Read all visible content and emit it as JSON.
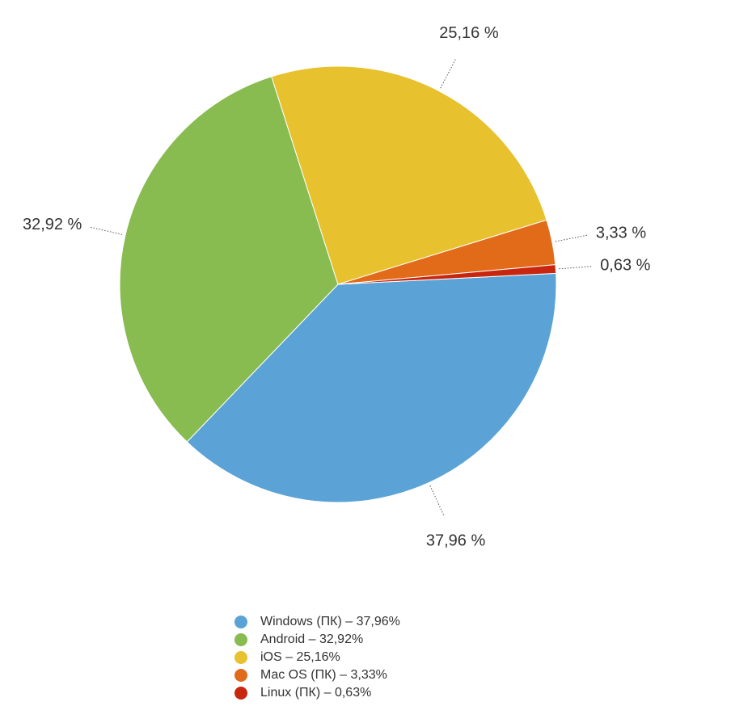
{
  "chart_data": {
    "type": "pie",
    "categories": [
      "Windows (ПК) – 37,96%",
      "Android  – 32,92%",
      "iOS – 25,16%",
      "Mac OS (ПК) – 3,33%",
      "Linux (ПК) – 0,63%"
    ],
    "values": [
      37.96,
      32.92,
      25.16,
      3.33,
      0.63
    ],
    "value_labels": [
      "37,96 %",
      "32,92 %",
      "25,16 %",
      "3,33 %",
      "0,63 %"
    ],
    "colors": [
      "#5ba3d6",
      "#88bb50",
      "#e8c12f",
      "#e26b1a",
      "#c8260e"
    ]
  }
}
